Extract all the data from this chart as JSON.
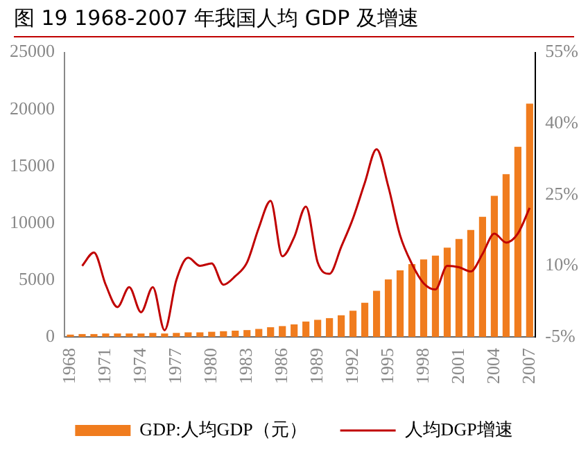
{
  "chart_data": {
    "type": "bar",
    "title": "图 19 1968-2007 年我国人均 GDP 及增速",
    "categories": [
      "1968",
      null,
      null,
      "1971",
      null,
      null,
      "1974",
      null,
      null,
      "1977",
      null,
      null,
      "1980",
      null,
      null,
      "1983",
      null,
      null,
      "1986",
      null,
      null,
      "1989",
      null,
      null,
      "1992",
      null,
      null,
      "1995",
      null,
      null,
      "1998",
      null,
      null,
      "2001",
      null,
      null,
      "2004",
      null,
      null,
      "2007"
    ],
    "series": [
      {
        "name": "GDP:人均GDP（元）",
        "color": "#f07c1e",
        "values": [
          200,
          250,
          250,
          300,
          300,
          300,
          300,
          350,
          300,
          350,
          400,
          400,
          450,
          500,
          550,
          600,
          700,
          850,
          950,
          1100,
          1350,
          1500,
          1650,
          1900,
          2300,
          3000,
          4050,
          5050,
          5850,
          6400,
          6800,
          7150,
          7850,
          8600,
          9400,
          10550,
          12400,
          14300,
          16700,
          20500
        ]
      },
      {
        "name": "人均DGP增速",
        "type": "line",
        "axis": "y2",
        "color": "#c00000",
        "values": [
          null,
          10,
          12.8,
          6,
          1.3,
          5.5,
          0.2,
          5.5,
          -3.6,
          7,
          11.7,
          10,
          10.5,
          6,
          7.8,
          10.7,
          18,
          23.7,
          12,
          16,
          22.5,
          10.7,
          8.3,
          14,
          20,
          27.5,
          34.6,
          26.7,
          16.4,
          10.4,
          6.3,
          5,
          10,
          9.7,
          8.8,
          12.5,
          16.8,
          14.9,
          16.8,
          22.2
        ]
      }
    ],
    "ylim": [
      0,
      25000
    ],
    "yticks": [
      0,
      5000,
      10000,
      15000,
      20000,
      25000
    ],
    "y2lim": [
      -5,
      55
    ],
    "y2ticks": [
      {
        "value": -5,
        "label": "-5%"
      },
      {
        "value": 10,
        "label": "10%"
      },
      {
        "value": 25,
        "label": "25%"
      },
      {
        "value": 40,
        "label": "40%"
      },
      {
        "value": 55,
        "label": "55%"
      }
    ],
    "legend": "bottom",
    "marker": "none",
    "line_style": "solid"
  }
}
